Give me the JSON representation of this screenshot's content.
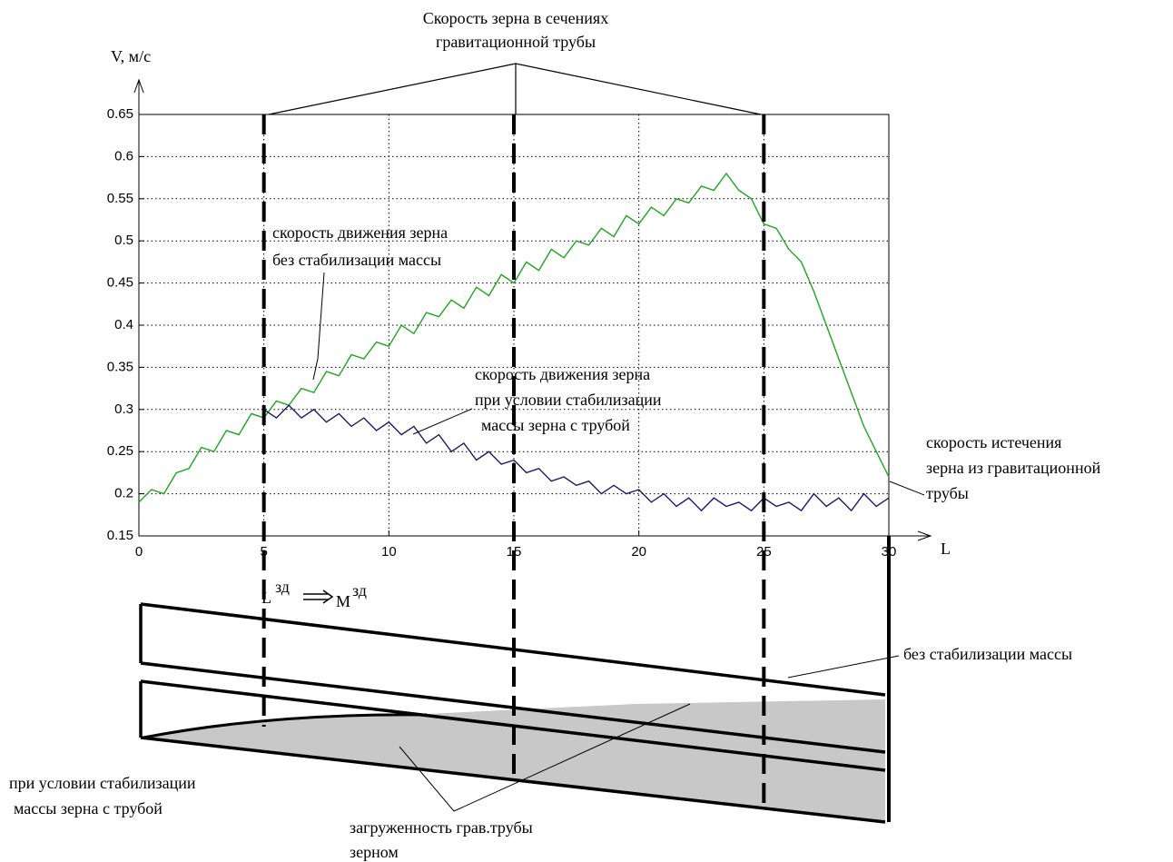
{
  "chart_data": {
    "type": "line",
    "title_lines": [
      "Скорость зерна в сечениях",
      "гравитационной трубы"
    ],
    "y_label": "V, м/с",
    "x_label": "L",
    "x": [
      0,
      0.5,
      1,
      1.5,
      2,
      2.5,
      3,
      3.5,
      4,
      4.5,
      5,
      5.5,
      6,
      6.5,
      7,
      7.5,
      8,
      8.5,
      9,
      9.5,
      10,
      10.5,
      11,
      11.5,
      12,
      12.5,
      13,
      13.5,
      14,
      14.5,
      15,
      15.5,
      16,
      16.5,
      17,
      17.5,
      18,
      18.5,
      19,
      19.5,
      20,
      20.5,
      21,
      21.5,
      22,
      22.5,
      23,
      23.5,
      24,
      24.5,
      25,
      25.5,
      26,
      26.5,
      27,
      27.5,
      28,
      28.5,
      29,
      29.5,
      30
    ],
    "series": [
      {
        "color": "#1fa51f",
        "values": [
          0.19,
          0.205,
          0.2,
          0.225,
          0.23,
          0.255,
          0.25,
          0.275,
          0.27,
          0.295,
          0.29,
          0.31,
          0.305,
          0.325,
          0.32,
          0.345,
          0.34,
          0.365,
          0.36,
          0.38,
          0.375,
          0.4,
          0.39,
          0.415,
          0.41,
          0.43,
          0.42,
          0.445,
          0.435,
          0.46,
          0.45,
          0.475,
          0.465,
          0.49,
          0.48,
          0.5,
          0.495,
          0.515,
          0.505,
          0.53,
          0.52,
          0.54,
          0.53,
          0.55,
          0.545,
          0.565,
          0.56,
          0.58,
          0.56,
          0.55,
          0.52,
          0.515,
          0.49,
          0.475,
          0.44,
          0.4,
          0.36,
          0.32,
          0.28,
          0.25,
          0.22
        ]
      },
      {
        "color": "#1b1b6e",
        "values": [
          null,
          null,
          null,
          null,
          null,
          null,
          null,
          null,
          null,
          null,
          0.3,
          0.29,
          0.305,
          0.29,
          0.3,
          0.285,
          0.295,
          0.28,
          0.29,
          0.275,
          0.285,
          0.27,
          0.28,
          0.26,
          0.27,
          0.25,
          0.26,
          0.24,
          0.25,
          0.235,
          0.24,
          0.225,
          0.23,
          0.215,
          0.22,
          0.21,
          0.215,
          0.2,
          0.21,
          0.2,
          0.205,
          0.19,
          0.2,
          0.185,
          0.195,
          0.18,
          0.195,
          0.185,
          0.19,
          0.18,
          0.195,
          0.185,
          0.19,
          0.18,
          0.2,
          0.185,
          0.195,
          0.18,
          0.2,
          0.185,
          0.195
        ]
      }
    ],
    "xlim": [
      0,
      30
    ],
    "xticks": [
      0,
      5,
      10,
      15,
      20,
      25,
      30
    ],
    "ylim": [
      0.15,
      0.65
    ],
    "yticks": [
      0.15,
      0.2,
      0.25,
      0.3,
      0.35,
      0.4,
      0.45,
      0.5,
      0.55,
      0.6,
      0.65
    ],
    "grid": true,
    "section_lines": [
      5,
      15,
      25,
      30
    ],
    "annotations": [
      [
        "скорость движения зерна",
        "без стабилизации массы"
      ],
      [
        "скорость движения зерна",
        "при условии стабилизации",
        "массы  зерна с трубой"
      ],
      [
        "скорость истечения",
        "зерна из гравитационной",
        "трубы"
      ]
    ]
  },
  "diagram": {
    "l_symbol": "L",
    "l_sup": "зд",
    "m_symbol": "M",
    "m_sup": "зд",
    "label_no_stab": "без стабилизации массы",
    "label_stab": [
      "при условии стабилизации",
      "массы  зерна с трубой"
    ],
    "label_load": [
      "загруженность грав.трубы",
      "зерном"
    ]
  }
}
